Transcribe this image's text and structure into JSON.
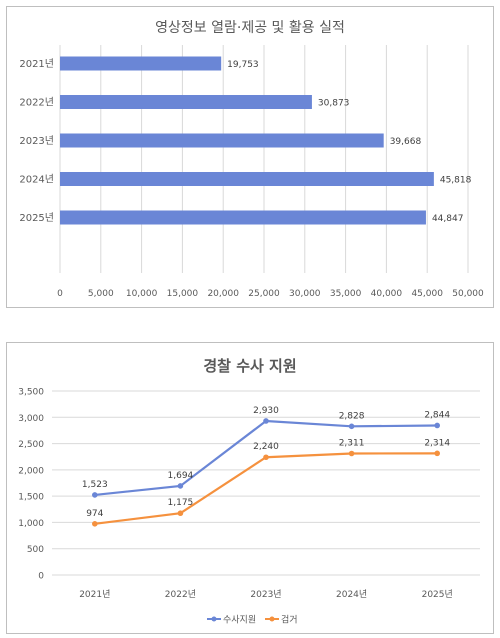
{
  "chart_data": [
    {
      "type": "bar",
      "orientation": "horizontal",
      "title": "영상정보 열람·제공 및 활용 실적",
      "categories": [
        "2021년",
        "2022년",
        "2023년",
        "2024년",
        "2025년"
      ],
      "values": [
        19753,
        30873,
        39668,
        45818,
        44847
      ],
      "value_labels": [
        "19,753",
        "30,873",
        "39,668",
        "45,818",
        "44,847"
      ],
      "x_ticks": [
        "0",
        "5,000",
        "10,000",
        "15,000",
        "20,000",
        "25,000",
        "30,000",
        "35,000",
        "40,000",
        "45,000",
        "50,000"
      ],
      "xlim": [
        0,
        50000
      ],
      "grid": true,
      "color": "#6a86d6"
    },
    {
      "type": "line",
      "title": "경찰 수사 지원",
      "categories": [
        "2021년",
        "2022년",
        "2023년",
        "2024년",
        "2025년"
      ],
      "y_ticks": [
        "0",
        "500",
        "1,000",
        "1,500",
        "2,000",
        "2,500",
        "3,000",
        "3,500"
      ],
      "ylim": [
        0,
        3500
      ],
      "grid": true,
      "legend_position": "bottom",
      "series": [
        {
          "name": "수사지원",
          "color": "#6a86d6",
          "values": [
            1523,
            1694,
            2930,
            2828,
            2844
          ],
          "value_labels": [
            "1,523",
            "1,694",
            "2,930",
            "2,828",
            "2,844"
          ]
        },
        {
          "name": "검거",
          "color": "#f5913e",
          "values": [
            974,
            1175,
            2240,
            2311,
            2314
          ],
          "value_labels": [
            "974",
            "1,175",
            "2,240",
            "2,311",
            "2,314"
          ]
        }
      ]
    }
  ]
}
